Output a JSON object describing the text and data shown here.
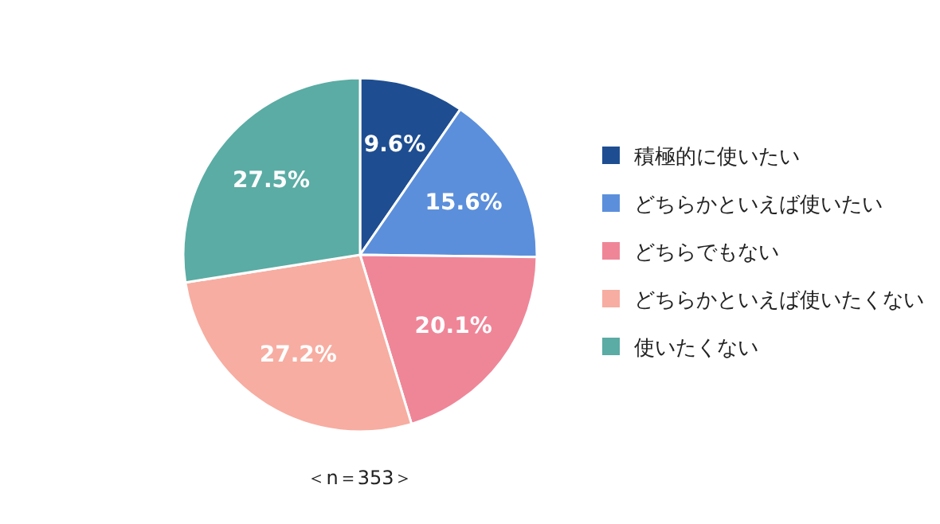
{
  "chart_data": {
    "type": "pie",
    "categories": [
      "積極的に使いたい",
      "どちらかといえば使いたい",
      "どちらでもない",
      "どちらかといえば使いたくない",
      "使いたくない"
    ],
    "values": [
      9.6,
      15.6,
      20.1,
      27.2,
      27.5
    ],
    "colors": [
      "#1e4e91",
      "#5b8fdb",
      "#ef8698",
      "#f7ada1",
      "#5aaca4"
    ],
    "value_labels": [
      "9.6%",
      "15.6%",
      "20.1%",
      "27.2%",
      "27.5%"
    ],
    "legend": "right",
    "annotations": [
      "＜n＝353＞"
    ]
  }
}
